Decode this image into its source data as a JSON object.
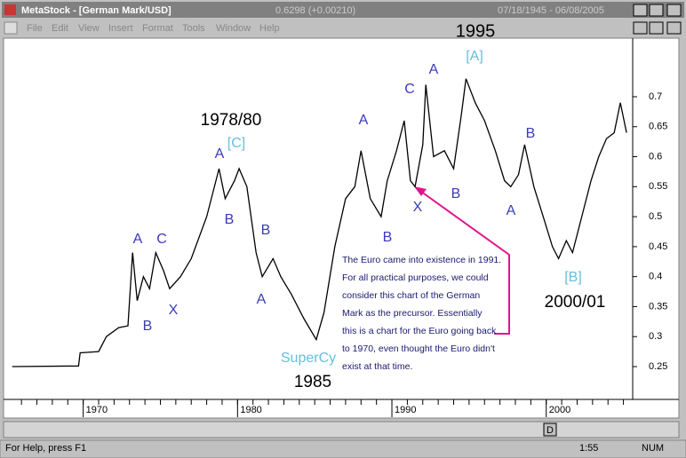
{
  "window": {
    "title": "MetaStock - [German Mark/USD]",
    "last_price": "0.6298 (+0.00210)",
    "date_range": "07/18/1945 - 06/08/2005"
  },
  "menu": [
    "File",
    "Edit",
    "View",
    "Insert",
    "Format",
    "Tools",
    "Window",
    "Help"
  ],
  "scroll_button": "D",
  "status": {
    "help": "For Help, press F1",
    "time": "1:55",
    "mode": "NUM"
  },
  "chart_data": {
    "type": "line",
    "color": "#000000",
    "x": [
      1965.4,
      1969.7,
      1969.8,
      1971.0,
      1971.5,
      1972.3,
      1972.9,
      1973.2,
      1973.5,
      1973.9,
      1974.3,
      1974.7,
      1975.2,
      1975.6,
      1976.3,
      1977.0,
      1978.0,
      1978.8,
      1979.2,
      1979.8,
      1980.1,
      1980.6,
      1981.2,
      1981.6,
      1982.3,
      1982.8,
      1983.5,
      1984.3,
      1985.1,
      1985.6,
      1986.3,
      1987.0,
      1987.6,
      1988.0,
      1988.6,
      1989.3,
      1989.7,
      1990.3,
      1990.5,
      1990.8,
      1991.2,
      1991.5,
      1992.0,
      1992.2,
      1992.7,
      1993.4,
      1994.0,
      1994.5,
      1994.8,
      1995.4,
      1996.0,
      1996.7,
      1997.3,
      1997.7,
      1998.2,
      1998.6,
      1999.2,
      1999.8,
      2000.4,
      2000.8,
      2001.3,
      2001.7,
      2002.3,
      2002.9,
      2003.4,
      2003.9,
      2004.4,
      2004.8,
      2005.2
    ],
    "values": [
      0.25,
      0.251,
      0.273,
      0.275,
      0.3,
      0.315,
      0.318,
      0.44,
      0.36,
      0.4,
      0.38,
      0.44,
      0.41,
      0.38,
      0.4,
      0.43,
      0.5,
      0.58,
      0.53,
      0.56,
      0.58,
      0.55,
      0.44,
      0.4,
      0.43,
      0.4,
      0.37,
      0.33,
      0.295,
      0.34,
      0.45,
      0.53,
      0.55,
      0.61,
      0.53,
      0.5,
      0.56,
      0.61,
      0.63,
      0.66,
      0.56,
      0.55,
      0.62,
      0.72,
      0.6,
      0.61,
      0.58,
      0.67,
      0.73,
      0.69,
      0.66,
      0.61,
      0.56,
      0.55,
      0.57,
      0.62,
      0.55,
      0.5,
      0.45,
      0.43,
      0.46,
      0.44,
      0.5,
      0.56,
      0.6,
      0.63,
      0.64,
      0.69,
      0.64
    ],
    "xlim": [
      1965.3,
      2005.6
    ],
    "ylim": [
      0.2,
      0.8
    ],
    "xticks": [
      1970,
      1980,
      1990,
      2000
    ],
    "yticks": [
      0.25,
      0.3,
      0.35,
      0.4,
      0.45,
      0.5,
      0.55,
      0.6,
      0.65,
      0.7
    ],
    "annotations": [
      {
        "text": "1995",
        "color": "#000000"
      },
      {
        "text": "[A]",
        "color": "#66bedd"
      },
      {
        "text": "A",
        "color": "#3a3ab8"
      },
      {
        "text": "C",
        "color": "#3a3ab8"
      },
      {
        "text": "A",
        "color": "#3a3ab8"
      },
      {
        "text": "1978/80",
        "color": "#000000"
      },
      {
        "text": "[C]",
        "color": "#66bedd"
      },
      {
        "text": "A",
        "color": "#3a3ab8"
      },
      {
        "text": "B",
        "color": "#3a3ab8"
      },
      {
        "text": "B",
        "color": "#3a3ab8"
      },
      {
        "text": "B",
        "color": "#3a3ab8"
      },
      {
        "text": "X",
        "color": "#3a3ab8"
      },
      {
        "text": "B",
        "color": "#3a3ab8"
      },
      {
        "text": "A",
        "color": "#3a3ab8"
      },
      {
        "text": "A",
        "color": "#3a3ab8"
      },
      {
        "text": "C",
        "color": "#3a3ab8"
      },
      {
        "text": "B",
        "color": "#3a3ab8"
      },
      {
        "text": "A",
        "color": "#3a3ab8"
      },
      {
        "text": "X",
        "color": "#3a3ab8"
      },
      {
        "text": "B",
        "color": "#3a3ab8"
      },
      {
        "text": "[B]",
        "color": "#66bedd"
      },
      {
        "text": "2000/01",
        "color": "#000000"
      },
      {
        "text": "SuperCy",
        "color": "#66bedd"
      },
      {
        "text": "1985",
        "color": "#000000"
      }
    ],
    "note": [
      "The Euro came into existence in 1991.",
      "For all practical purposes, we could",
      "consider this chart of the German",
      "Mark as the precursor.  Essentially",
      "this is a chart for the Euro going back",
      "to 1970, even thought the Euro didn't",
      "exist at that time."
    ]
  }
}
